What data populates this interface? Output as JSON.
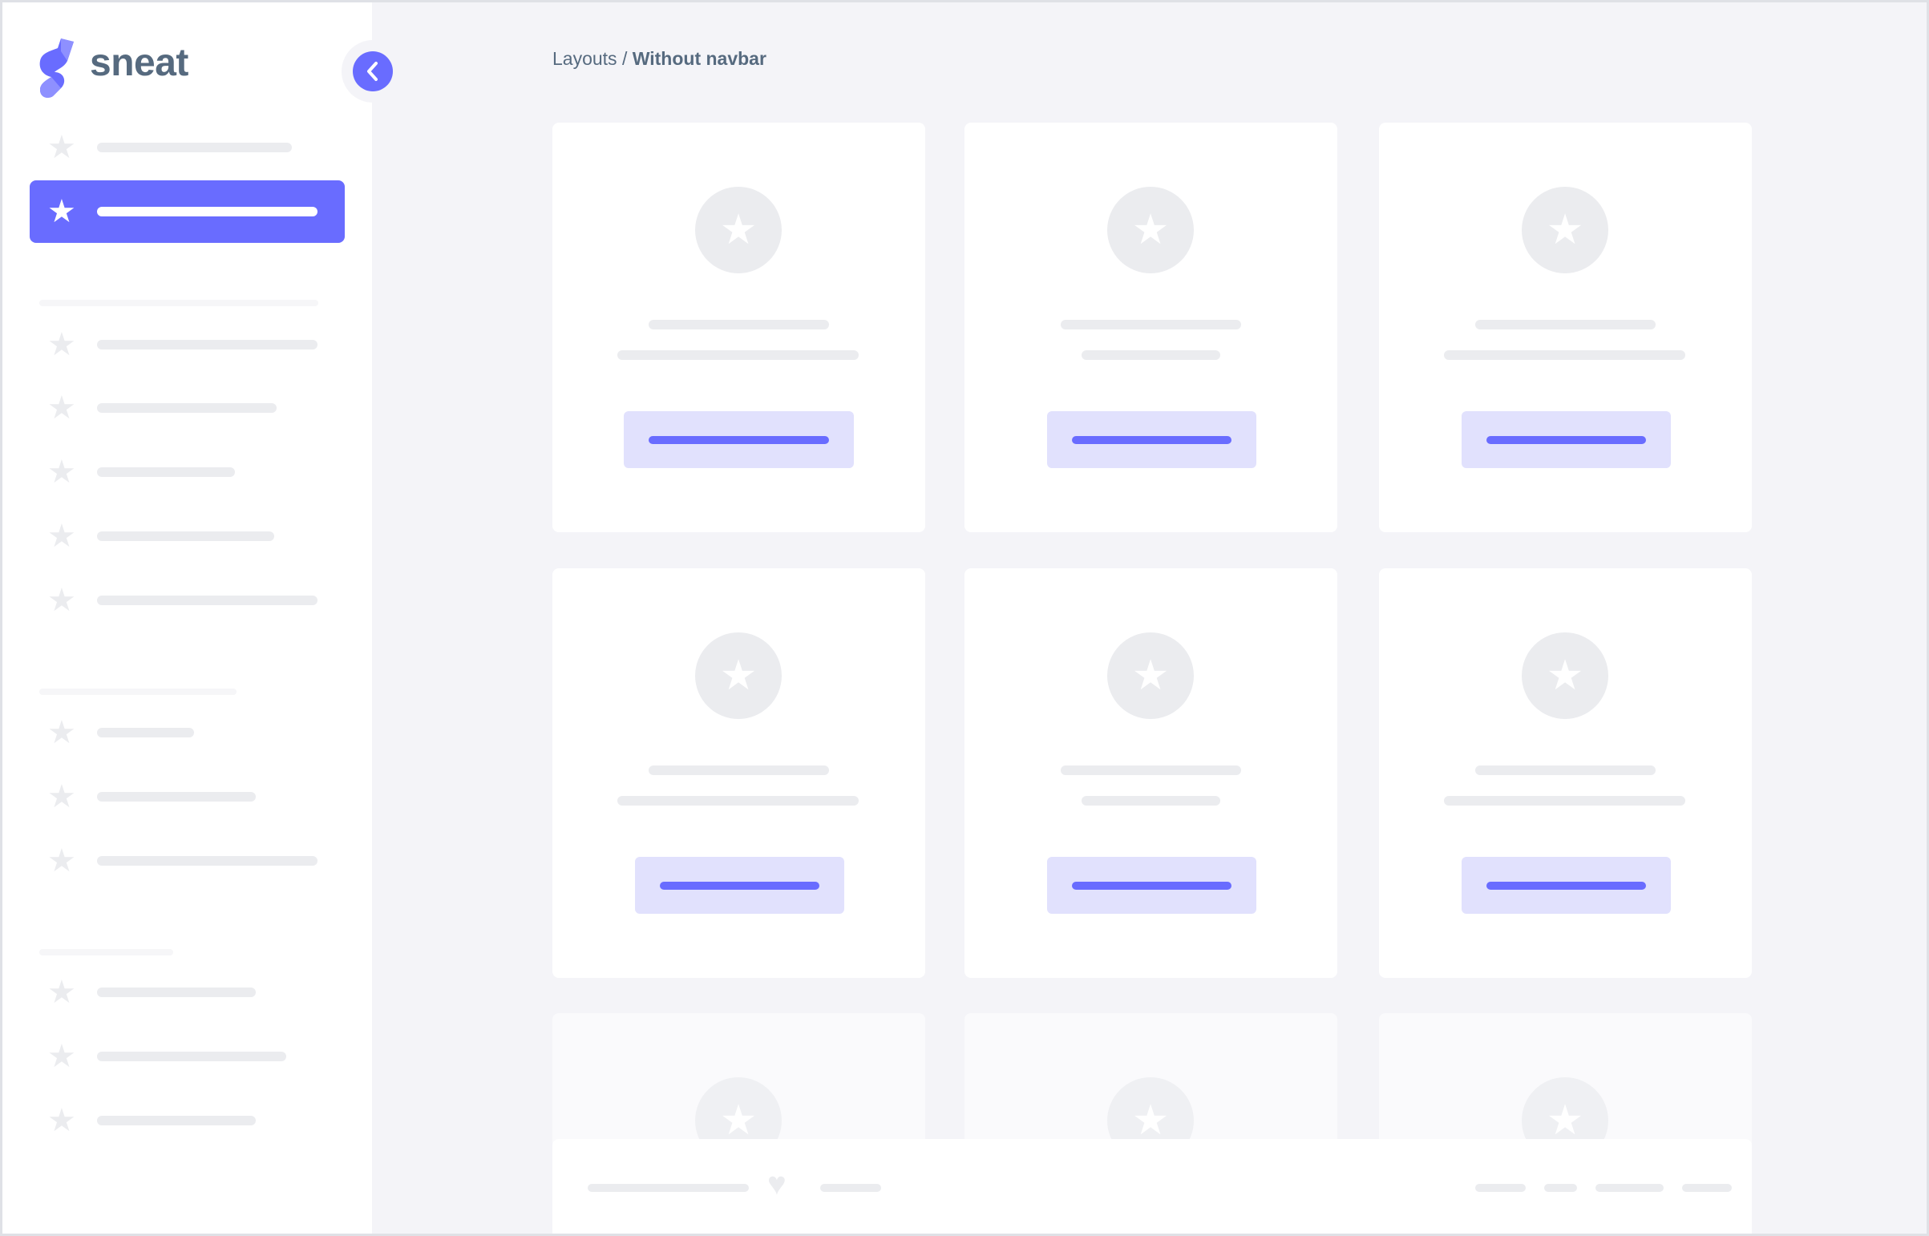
{
  "brand": {
    "name": "sneat"
  },
  "breadcrumb": {
    "parent": "Layouts",
    "separator": " / ",
    "current": "Without navbar"
  },
  "sidebar": {
    "active_index": 1
  },
  "icons": {
    "menu_item": "star-icon",
    "collapse": "chevron-left-icon",
    "footer": "heart-icon"
  },
  "colors": {
    "accent": "#696cff",
    "accent_light": "#e1e1fd",
    "background": "#f4f4f8",
    "placeholder": "#ebecef",
    "text": "#566a7f"
  }
}
